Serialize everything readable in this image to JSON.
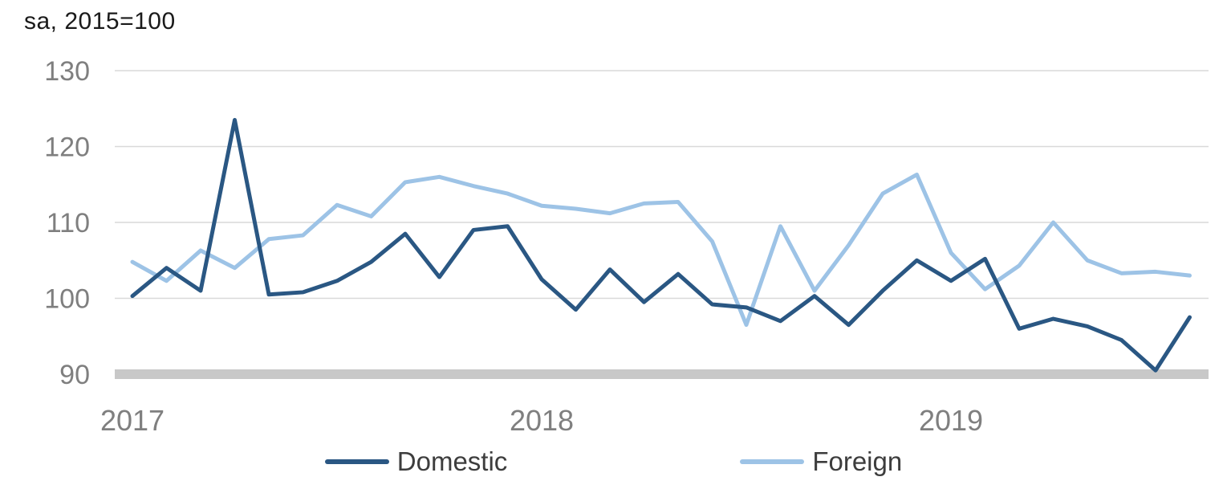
{
  "chart_data": {
    "type": "line",
    "units_label": "sa, 2015=100",
    "x": [
      "2017-01",
      "2017-02",
      "2017-03",
      "2017-04",
      "2017-05",
      "2017-06",
      "2017-07",
      "2017-08",
      "2017-09",
      "2017-10",
      "2017-11",
      "2017-12",
      "2018-01",
      "2018-02",
      "2018-03",
      "2018-04",
      "2018-05",
      "2018-06",
      "2018-07",
      "2018-08",
      "2018-09",
      "2018-10",
      "2018-11",
      "2018-12",
      "2019-01",
      "2019-02",
      "2019-03",
      "2019-04",
      "2019-05",
      "2019-06",
      "2019-07",
      "2019-08"
    ],
    "series": [
      {
        "name": "Domestic",
        "color": "#2A5783",
        "values": [
          100.3,
          104.0,
          101.0,
          123.5,
          100.5,
          100.8,
          102.3,
          104.8,
          108.5,
          102.8,
          109.0,
          109.5,
          102.5,
          98.5,
          103.8,
          99.5,
          103.2,
          99.2,
          98.8,
          97.0,
          100.3,
          96.5,
          101.0,
          105.0,
          102.3,
          105.2,
          96.0,
          97.3,
          96.3,
          94.5,
          90.5,
          97.5
        ]
      },
      {
        "name": "Foreign",
        "color": "#9DC3E6",
        "values": [
          104.8,
          102.3,
          106.3,
          104.0,
          107.8,
          108.3,
          112.3,
          110.8,
          115.3,
          116.0,
          114.8,
          113.8,
          112.2,
          111.8,
          111.2,
          112.5,
          112.7,
          107.5,
          96.5,
          109.5,
          101.0,
          107.0,
          113.8,
          116.3,
          106.0,
          101.2,
          104.3,
          110.0,
          105.0,
          103.3,
          103.5,
          103.0
        ]
      }
    ],
    "ylim": [
      90,
      130
    ],
    "y_ticks": [
      90,
      100,
      110,
      120,
      130
    ],
    "x_ticks": [
      {
        "label": "2017",
        "index": 0
      },
      {
        "label": "2018",
        "index": 12
      },
      {
        "label": "2019",
        "index": 24
      }
    ],
    "grid": "horizontal-only",
    "legend_position": "bottom-center",
    "colors": {
      "gridline": "#d9d9d9",
      "baseline_band": "#c8c8c8",
      "axis_text": "#7f7f7f",
      "title_text": "#1a1a1a",
      "legend_text": "#3d3d3d"
    }
  }
}
